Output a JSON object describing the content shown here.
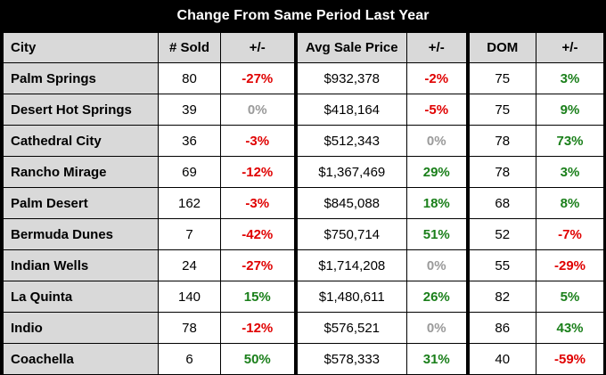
{
  "title": "Change From Same Period Last Year",
  "headers": [
    "City",
    "# Sold",
    "+/-",
    "Avg Sale Price",
    "+/-",
    "DOM",
    "+/-"
  ],
  "colors": {
    "negative": "#e00000",
    "positive": "#1a7f1a",
    "neutral": "#9a9a9a",
    "header_bg": "#d9d9d9"
  },
  "rows": [
    {
      "city": "Palm Springs",
      "sold": "80",
      "sold_change": "-27%",
      "price": "$932,378",
      "price_change": "-2%",
      "dom": "75",
      "dom_change": "3%"
    },
    {
      "city": "Desert Hot Springs",
      "sold": "39",
      "sold_change": "0%",
      "price": "$418,164",
      "price_change": "-5%",
      "dom": "75",
      "dom_change": "9%"
    },
    {
      "city": "Cathedral City",
      "sold": "36",
      "sold_change": "-3%",
      "price": "$512,343",
      "price_change": "0%",
      "dom": "78",
      "dom_change": "73%"
    },
    {
      "city": "Rancho Mirage",
      "sold": "69",
      "sold_change": "-12%",
      "price": "$1,367,469",
      "price_change": "29%",
      "dom": "78",
      "dom_change": "3%"
    },
    {
      "city": "Palm Desert",
      "sold": "162",
      "sold_change": "-3%",
      "price": "$845,088",
      "price_change": "18%",
      "dom": "68",
      "dom_change": "8%"
    },
    {
      "city": "Bermuda Dunes",
      "sold": "7",
      "sold_change": "-42%",
      "price": "$750,714",
      "price_change": "51%",
      "dom": "52",
      "dom_change": "-7%"
    },
    {
      "city": "Indian Wells",
      "sold": "24",
      "sold_change": "-27%",
      "price": "$1,714,208",
      "price_change": "0%",
      "dom": "55",
      "dom_change": "-29%"
    },
    {
      "city": "La Quinta",
      "sold": "140",
      "sold_change": "15%",
      "price": "$1,480,611",
      "price_change": "26%",
      "dom": "82",
      "dom_change": "5%"
    },
    {
      "city": "Indio",
      "sold": "78",
      "sold_change": "-12%",
      "price": "$576,521",
      "price_change": "0%",
      "dom": "86",
      "dom_change": "43%"
    },
    {
      "city": "Coachella",
      "sold": "6",
      "sold_change": "50%",
      "price": "$578,333",
      "price_change": "31%",
      "dom": "40",
      "dom_change": "-59%"
    }
  ]
}
